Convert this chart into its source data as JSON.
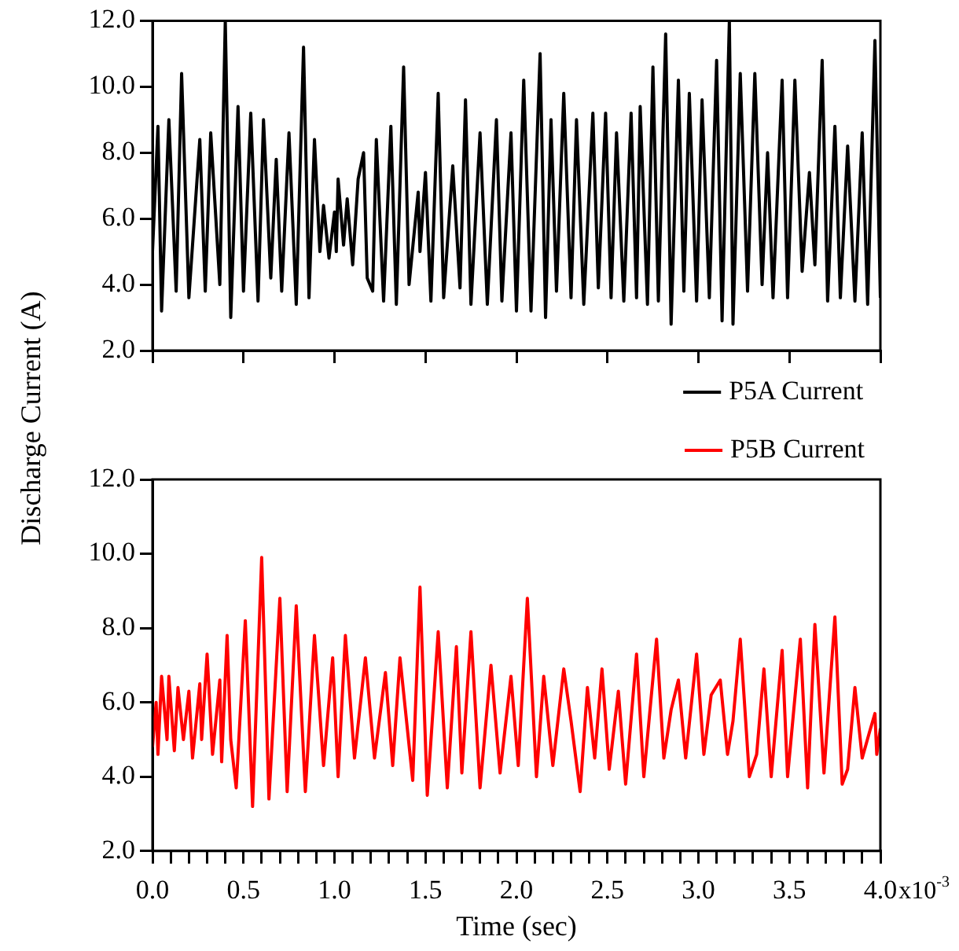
{
  "chart_data": [
    {
      "type": "line",
      "ylabel": "Discharge Current (A)",
      "xlim": [
        0,
        4
      ],
      "xticks": [
        {
          "value": 0,
          "label": null
        },
        {
          "value": 0.5,
          "label": null
        },
        {
          "value": 1,
          "label": null
        },
        {
          "value": 1.5,
          "label": null
        },
        {
          "value": 2,
          "label": null
        },
        {
          "value": 2.5,
          "label": null
        },
        {
          "value": 3,
          "label": null
        },
        {
          "value": 3.5,
          "label": null
        },
        {
          "value": 4,
          "label": null
        }
      ],
      "ylim": [
        2,
        12
      ],
      "yticks": [
        {
          "value": 2,
          "label": "2.0"
        },
        {
          "value": 4,
          "label": "4.0"
        },
        {
          "value": 6,
          "label": "6.0"
        },
        {
          "value": 8,
          "label": "8.0"
        },
        {
          "value": 10,
          "label": "10.0"
        },
        {
          "value": 12,
          "label": "12.0"
        }
      ],
      "tick_labels": "y",
      "grid": false,
      "legend": "bottom right",
      "marker": "none",
      "line_style": "solid",
      "series": [
        {
          "name": "P5A Current",
          "color": "#000000",
          "x": [
            0,
            0.03,
            0.05,
            0.09,
            0.13,
            0.16,
            0.2,
            0.26,
            0.29,
            0.32,
            0.37,
            0.4,
            0.43,
            0.47,
            0.5,
            0.54,
            0.58,
            0.61,
            0.65,
            0.68,
            0.71,
            0.75,
            0.79,
            0.83,
            0.86,
            0.89,
            0.92,
            0.94,
            0.97,
            1,
            1.01,
            1.02,
            1.05,
            1.07,
            1.1,
            1.13,
            1.16,
            1.18,
            1.21,
            1.23,
            1.27,
            1.31,
            1.34,
            1.38,
            1.41,
            1.46,
            1.47,
            1.5,
            1.53,
            1.57,
            1.6,
            1.65,
            1.69,
            1.72,
            1.75,
            1.8,
            1.84,
            1.89,
            1.92,
            1.97,
            2,
            2.04,
            2.08,
            2.13,
            2.16,
            2.19,
            2.22,
            2.26,
            2.3,
            2.33,
            2.37,
            2.42,
            2.45,
            2.49,
            2.52,
            2.55,
            2.59,
            2.63,
            2.66,
            2.68,
            2.72,
            2.75,
            2.78,
            2.82,
            2.85,
            2.89,
            2.92,
            2.95,
            2.99,
            3.02,
            3.06,
            3.1,
            3.13,
            3.17,
            3.19,
            3.23,
            3.27,
            3.31,
            3.35,
            3.38,
            3.41,
            3.46,
            3.49,
            3.53,
            3.57,
            3.61,
            3.64,
            3.68,
            3.71,
            3.75,
            3.78,
            3.82,
            3.86,
            3.9,
            3.93,
            3.97,
            4
          ],
          "values": [
            5.0,
            8.8,
            3.2,
            9.0,
            3.8,
            10.4,
            3.6,
            8.4,
            3.8,
            8.6,
            4.0,
            12.0,
            3.0,
            9.4,
            3.8,
            9.2,
            3.5,
            9.0,
            4.2,
            7.8,
            3.8,
            8.6,
            3.4,
            11.2,
            3.6,
            8.4,
            5.0,
            6.4,
            4.8,
            6.2,
            5.0,
            7.2,
            5.2,
            6.6,
            4.6,
            7.2,
            8.0,
            4.2,
            3.8,
            8.4,
            3.5,
            8.8,
            3.4,
            10.6,
            4.0,
            6.8,
            5.0,
            7.4,
            3.5,
            9.8,
            3.6,
            7.6,
            3.9,
            9.6,
            3.4,
            8.6,
            3.4,
            9.0,
            3.5,
            8.6,
            3.2,
            10.2,
            3.2,
            11.0,
            3.0,
            9.0,
            3.8,
            9.8,
            3.6,
            9.0,
            3.4,
            9.2,
            3.9,
            9.2,
            3.6,
            8.6,
            3.5,
            9.2,
            3.6,
            9.4,
            3.4,
            10.6,
            3.5,
            11.6,
            2.8,
            10.2,
            3.8,
            9.8,
            3.5,
            9.6,
            3.6,
            10.8,
            2.9,
            12.0,
            2.8,
            10.4,
            3.8,
            10.4,
            4.0,
            8.0,
            3.6,
            10.2,
            3.6,
            10.2,
            4.4,
            7.4,
            4.6,
            10.8,
            3.5,
            8.8,
            3.6,
            8.2,
            3.5,
            8.6,
            3.4,
            11.4,
            3.6
          ]
        }
      ]
    },
    {
      "type": "line",
      "xlabel": "Time (sec)",
      "xlim": [
        0,
        4
      ],
      "ylim": [
        2,
        12
      ],
      "yticks": [
        {
          "value": 2,
          "label": "2.0"
        },
        {
          "value": 4,
          "label": "4.0"
        },
        {
          "value": 6,
          "label": "6.0"
        },
        {
          "value": 8,
          "label": "8.0"
        },
        {
          "value": 10,
          "label": "10.0"
        },
        {
          "value": 12,
          "label": "12.0"
        }
      ],
      "xticks": [
        {
          "value": 0,
          "label": "0.0"
        },
        {
          "value": 0.1,
          "label": null
        },
        {
          "value": 0.2,
          "label": null
        },
        {
          "value": 0.3,
          "label": null
        },
        {
          "value": 0.4,
          "label": null
        },
        {
          "value": 0.5,
          "label": "0.5"
        },
        {
          "value": 0.6,
          "label": null
        },
        {
          "value": 0.7,
          "label": null
        },
        {
          "value": 0.8,
          "label": null
        },
        {
          "value": 0.9,
          "label": null
        },
        {
          "value": 1,
          "label": "1.0"
        },
        {
          "value": 1.1,
          "label": null
        },
        {
          "value": 1.2,
          "label": null
        },
        {
          "value": 1.3,
          "label": null
        },
        {
          "value": 1.4,
          "label": null
        },
        {
          "value": 1.5,
          "label": "1.5"
        },
        {
          "value": 1.6,
          "label": null
        },
        {
          "value": 1.7,
          "label": null
        },
        {
          "value": 1.8,
          "label": null
        },
        {
          "value": 1.9,
          "label": null
        },
        {
          "value": 2,
          "label": "2.0"
        },
        {
          "value": 2.1,
          "label": null
        },
        {
          "value": 2.2,
          "label": null
        },
        {
          "value": 2.3,
          "label": null
        },
        {
          "value": 2.4,
          "label": null
        },
        {
          "value": 2.5,
          "label": "2.5"
        },
        {
          "value": 2.6,
          "label": null
        },
        {
          "value": 2.7,
          "label": null
        },
        {
          "value": 2.8,
          "label": null
        },
        {
          "value": 2.9,
          "label": null
        },
        {
          "value": 3,
          "label": "3.0"
        },
        {
          "value": 3.1,
          "label": null
        },
        {
          "value": 3.2,
          "label": null
        },
        {
          "value": 3.3,
          "label": null
        },
        {
          "value": 3.4,
          "label": null
        },
        {
          "value": 3.5,
          "label": "3.5"
        },
        {
          "value": 3.6,
          "label": null
        },
        {
          "value": 3.7,
          "label": null
        },
        {
          "value": 3.8,
          "label": null
        },
        {
          "value": 3.9,
          "label": null
        },
        {
          "value": 4,
          "label": "4.0"
        }
      ],
      "annotations": [
        "x10$^{-3}$"
      ],
      "grid": false,
      "legend": "top right",
      "marker": "none",
      "line_style": "solid",
      "series": [
        {
          "name": "P5B Current",
          "color": "#ff0000",
          "x": [
            0,
            0.02,
            0.03,
            0.05,
            0.08,
            0.09,
            0.12,
            0.14,
            0.17,
            0.2,
            0.22,
            0.26,
            0.27,
            0.3,
            0.33,
            0.37,
            0.38,
            0.41,
            0.43,
            0.46,
            0.51,
            0.55,
            0.6,
            0.64,
            0.7,
            0.74,
            0.79,
            0.84,
            0.89,
            0.94,
            0.99,
            1.02,
            1.06,
            1.11,
            1.17,
            1.22,
            1.28,
            1.32,
            1.36,
            1.43,
            1.47,
            1.51,
            1.57,
            1.62,
            1.67,
            1.7,
            1.75,
            1.8,
            1.86,
            1.91,
            1.97,
            2.01,
            2.06,
            2.11,
            2.15,
            2.2,
            2.26,
            2.3,
            2.35,
            2.39,
            2.43,
            2.47,
            2.51,
            2.56,
            2.6,
            2.66,
            2.7,
            2.77,
            2.81,
            2.85,
            2.89,
            2.93,
            2.99,
            3.03,
            3.07,
            3.12,
            3.16,
            3.19,
            3.23,
            3.28,
            3.32,
            3.36,
            3.4,
            3.46,
            3.49,
            3.56,
            3.6,
            3.64,
            3.69,
            3.75,
            3.79,
            3.82,
            3.86,
            3.9,
            3.94,
            3.97,
            3.98,
            4
          ],
          "values": [
            4.8,
            6.0,
            4.6,
            6.7,
            5.0,
            6.7,
            4.7,
            6.4,
            5.0,
            6.3,
            4.5,
            6.5,
            5.0,
            7.3,
            4.6,
            6.6,
            4.4,
            7.8,
            5.0,
            3.7,
            8.2,
            3.2,
            9.9,
            3.4,
            8.8,
            3.6,
            8.6,
            3.6,
            7.8,
            4.3,
            7.2,
            4.0,
            7.8,
            4.5,
            7.2,
            4.5,
            6.8,
            4.3,
            7.2,
            3.9,
            9.1,
            3.5,
            7.9,
            3.7,
            7.5,
            4.1,
            7.9,
            3.7,
            7.0,
            4.1,
            6.7,
            4.3,
            8.8,
            4.0,
            6.7,
            4.3,
            6.9,
            5.5,
            3.6,
            6.4,
            4.5,
            6.9,
            4.2,
            6.3,
            3.8,
            7.3,
            4.0,
            7.7,
            4.5,
            5.8,
            6.6,
            4.5,
            7.3,
            4.6,
            6.2,
            6.6,
            4.6,
            5.5,
            7.7,
            4.0,
            4.6,
            6.9,
            4.0,
            7.4,
            4.0,
            7.7,
            3.7,
            8.1,
            4.1,
            8.3,
            3.8,
            4.2,
            6.4,
            4.5,
            5.2,
            5.7,
            4.6,
            5.3
          ]
        }
      ]
    }
  ]
}
